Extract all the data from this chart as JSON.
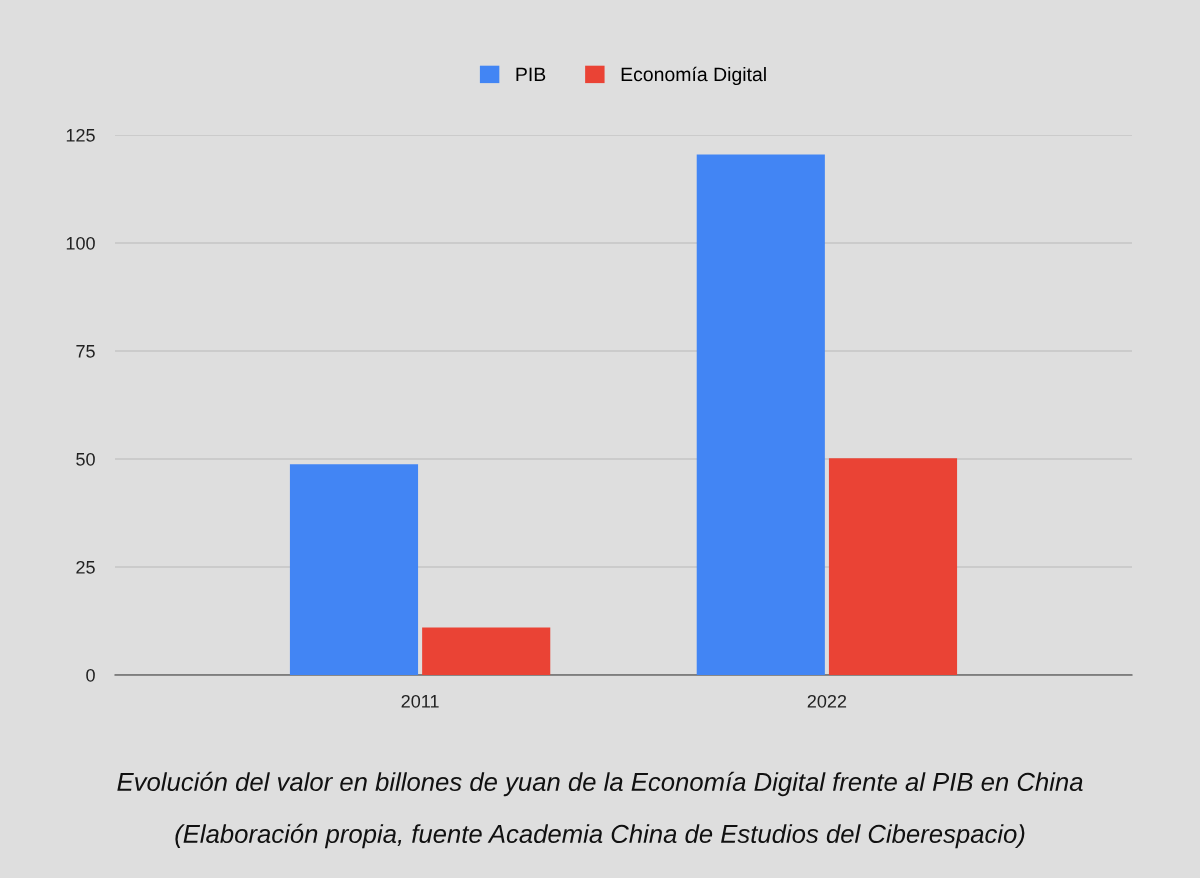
{
  "chart_data": {
    "type": "bar",
    "categories": [
      "2011",
      "2022"
    ],
    "series": [
      {
        "name": "PIB",
        "color": "#4285f4",
        "values": [
          48.8,
          120.5
        ]
      },
      {
        "name": "Economía Digital",
        "color": "#ea4335",
        "values": [
          11,
          50.2
        ]
      }
    ],
    "ylim": [
      0,
      125
    ],
    "yticks": [
      0,
      25,
      50,
      75,
      100,
      125
    ],
    "grid": "y",
    "legend": "top",
    "annotations": [
      "Evolución del valor en billones de yuan de la Economía Digital frente al PIB en China",
      "(Elaboración propia, fuente Academia China de Estudios del Ciberespacio)"
    ]
  }
}
